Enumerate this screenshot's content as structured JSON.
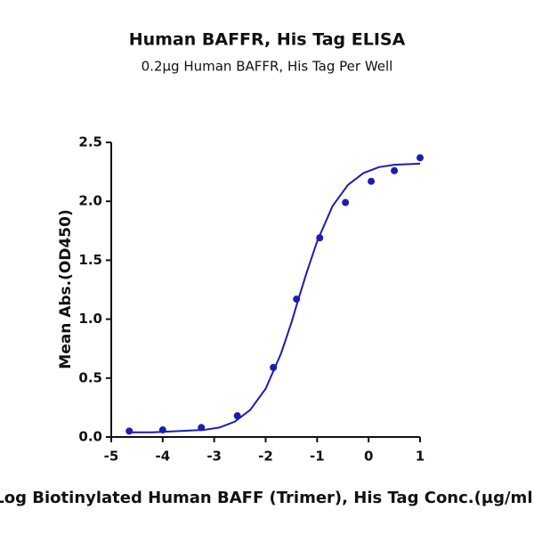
{
  "chart_data": {
    "type": "scatter",
    "title": "Human BAFFR, His Tag ELISA",
    "subtitle": "0.2µg Human BAFFR, His Tag Per Well",
    "x_label": "Log Biotinylated Human BAFF (Trimer), His Tag Conc.(µg/ml)",
    "y_label": "Mean Abs.(OD450)",
    "xlim": [
      -5,
      1
    ],
    "ylim": [
      0,
      2.5
    ],
    "xticks": [
      -5,
      -4,
      -3,
      -2,
      -1,
      0,
      1
    ],
    "yticks": [
      {
        "value": 0,
        "label": "0.0"
      },
      0.5,
      {
        "value": 1,
        "label": "1.0"
      },
      1.5,
      {
        "value": 2,
        "label": "2.0"
      },
      2.5
    ],
    "color": "#1c1cb4",
    "points": {
      "x": [
        -4.65,
        -4.0,
        -3.25,
        -2.55,
        -1.85,
        -1.4,
        -0.95,
        -0.45,
        0.05,
        0.5,
        1.0
      ],
      "values": [
        0.05,
        0.06,
        0.08,
        0.18,
        0.59,
        1.17,
        1.69,
        1.99,
        2.17,
        2.26,
        2.37
      ]
    },
    "fit": {
      "x": [
        -4.7,
        -4.2,
        -3.7,
        -3.2,
        -2.9,
        -2.6,
        -2.3,
        -2.0,
        -1.7,
        -1.5,
        -1.35,
        -1.2,
        -1.0,
        -0.7,
        -0.4,
        -0.1,
        0.2,
        0.5,
        1.0
      ],
      "values": [
        0.04,
        0.04,
        0.05,
        0.06,
        0.08,
        0.13,
        0.23,
        0.41,
        0.71,
        0.97,
        1.19,
        1.4,
        1.66,
        1.96,
        2.14,
        2.24,
        2.29,
        2.31,
        2.32
      ]
    }
  }
}
